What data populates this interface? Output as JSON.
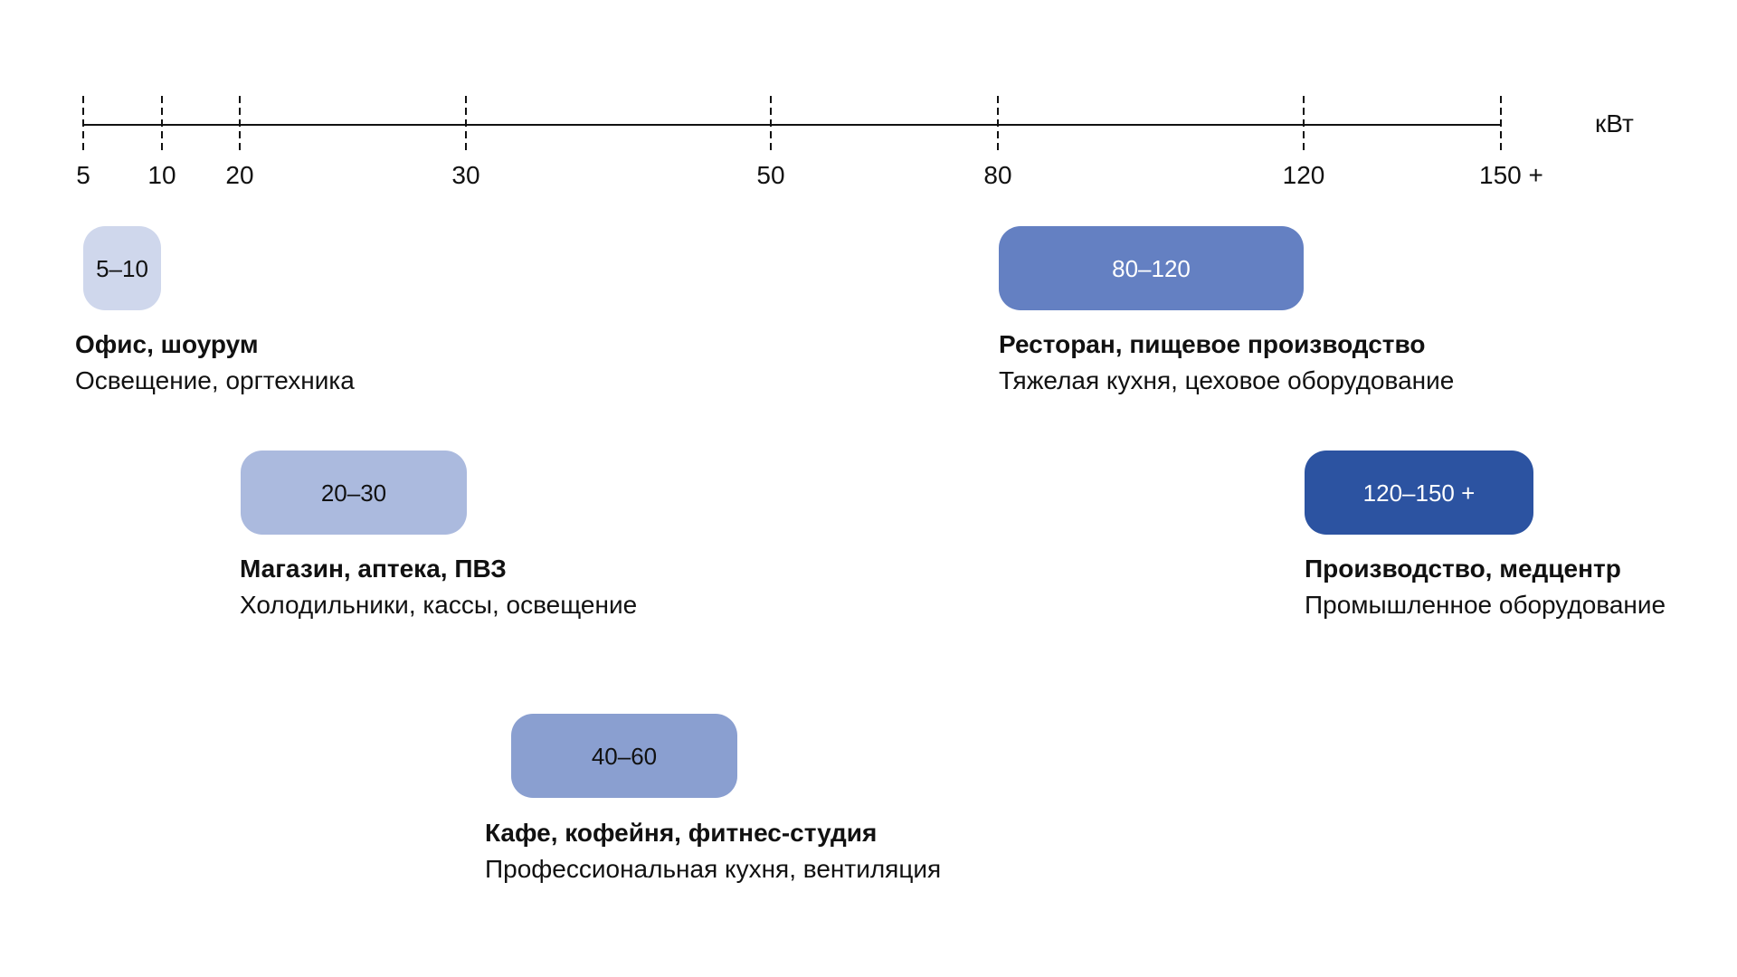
{
  "axis": {
    "unit": "кВт",
    "ticks": [
      {
        "value": 5,
        "label": "5"
      },
      {
        "value": 10,
        "label": "10"
      },
      {
        "value": 20,
        "label": "20"
      },
      {
        "value": 30,
        "label": "30"
      },
      {
        "value": 50,
        "label": "50"
      },
      {
        "value": 80,
        "label": "80"
      },
      {
        "value": 120,
        "label": "120"
      },
      {
        "value": 150,
        "label": "150 +"
      }
    ]
  },
  "categories": [
    {
      "range_label": "5–10",
      "range_from": 5,
      "range_to": 10,
      "color": "#cfd7ec",
      "text_color": "#111111",
      "title": "Офис, шоурум",
      "description": "Освещение, оргтехника"
    },
    {
      "range_label": "20–30",
      "range_from": 20,
      "range_to": 30,
      "color": "#abbade",
      "text_color": "#111111",
      "title": "Магазин, аптека, ПВЗ",
      "description": "Холодильники, кассы, освещение"
    },
    {
      "range_label": "40–60",
      "range_from": 40,
      "range_to": 60,
      "color": "#8a9fd0",
      "text_color": "#111111",
      "title": "Кафе, кофейня, фитнес-студия",
      "description": "Профессиональная кухня, вентиляция"
    },
    {
      "range_label": "80–120",
      "range_from": 80,
      "range_to": 120,
      "color": "#6480c2",
      "text_color": "#ffffff",
      "title": "Ресторан, пищевое производство",
      "description": "Тяжелая кухня, цеховое оборудование"
    },
    {
      "range_label": "120–150 +",
      "range_from": 120,
      "range_to": 150,
      "color": "#2c53a1",
      "text_color": "#ffffff",
      "title": "Производство, медцентр",
      "description": "Промышленное оборудование"
    }
  ]
}
